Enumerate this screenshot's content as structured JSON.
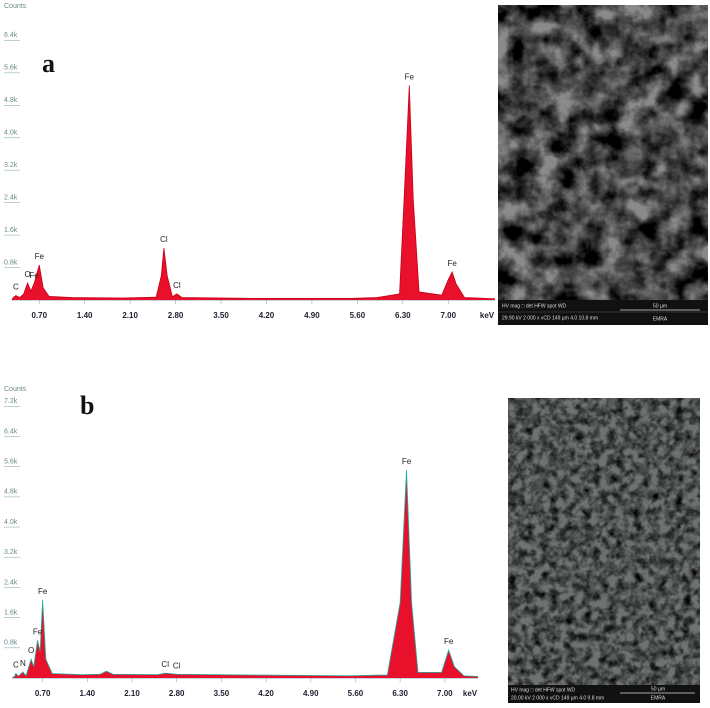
{
  "chart_data": [
    {
      "type": "area",
      "panel_label": "a",
      "y_label": "Counts",
      "x_label": "keV",
      "color": "#e8102a",
      "line_color": "#c80018",
      "x": [
        0.28,
        0.3,
        0.34,
        0.4,
        0.46,
        0.52,
        0.57,
        0.62,
        0.7,
        0.76,
        0.85,
        1.2,
        2.0,
        2.5,
        2.58,
        2.62,
        2.67,
        2.75,
        2.82,
        2.9,
        4.0,
        5.5,
        5.9,
        6.25,
        6.32,
        6.4,
        6.46,
        6.55,
        6.9,
        7.0,
        7.06,
        7.12,
        7.25,
        7.72
      ],
      "values": [
        0,
        60,
        110,
        60,
        150,
        420,
        220,
        400,
        860,
        300,
        90,
        60,
        50,
        70,
        600,
        1280,
        600,
        80,
        150,
        60,
        40,
        40,
        60,
        150,
        2500,
        5290,
        2500,
        200,
        120,
        500,
        690,
        400,
        60,
        30
      ],
      "annotations": [
        {
          "text": "C",
          "x": 0.34,
          "y": 110
        },
        {
          "text": "O",
          "x": 0.52,
          "y": 420
        },
        {
          "text": "Fe",
          "x": 0.62,
          "y": 400
        },
        {
          "text": "Fe",
          "x": 0.7,
          "y": 860
        },
        {
          "text": "Cl",
          "x": 2.62,
          "y": 1280
        },
        {
          "text": "Cl",
          "x": 2.82,
          "y": 150
        },
        {
          "text": "Fe",
          "x": 6.4,
          "y": 5290
        },
        {
          "text": "Fe",
          "x": 7.06,
          "y": 690
        }
      ],
      "xlim": [
        0.28,
        7.72
      ],
      "ylim": [
        0,
        7100
      ],
      "xticks": [
        {
          "value": 0.7,
          "label": "0.70"
        },
        {
          "value": 1.4,
          "label": "1.40"
        },
        {
          "value": 2.1,
          "label": "2.10"
        },
        {
          "value": 2.8,
          "label": "2.80"
        },
        {
          "value": 3.5,
          "label": "3.50"
        },
        {
          "value": 4.2,
          "label": "4.20"
        },
        {
          "value": 4.9,
          "label": "4.90"
        },
        {
          "value": 5.6,
          "label": "5.60"
        },
        {
          "value": 6.3,
          "label": "6.30"
        },
        {
          "value": 7.0,
          "label": "7.00"
        }
      ],
      "yticks": [
        {
          "value": 800,
          "label": "0.8k"
        },
        {
          "value": 1600,
          "label": "1.6k"
        },
        {
          "value": 2400,
          "label": "2.4k"
        },
        {
          "value": 3200,
          "label": "3.2k"
        },
        {
          "value": 4000,
          "label": "4.0k"
        },
        {
          "value": 4800,
          "label": "4.8k"
        },
        {
          "value": 5600,
          "label": "5.6k"
        },
        {
          "value": 6400,
          "label": "6.4k"
        }
      ]
    },
    {
      "type": "area",
      "panel_label": "b",
      "y_label": "Counts",
      "x_label": "keV",
      "color": "#e8102a",
      "line_color": "#20b0a0",
      "x": [
        0.22,
        0.26,
        0.28,
        0.32,
        0.39,
        0.44,
        0.52,
        0.56,
        0.62,
        0.66,
        0.7,
        0.75,
        0.85,
        1.3,
        1.6,
        1.7,
        1.8,
        2.5,
        2.62,
        2.8,
        4.0,
        5.5,
        6.1,
        6.3,
        6.4,
        6.48,
        6.58,
        6.95,
        7.06,
        7.15,
        7.3,
        7.52
      ],
      "values": [
        0,
        40,
        120,
        50,
        160,
        60,
        500,
        300,
        1000,
        700,
        2070,
        500,
        120,
        90,
        100,
        180,
        100,
        90,
        130,
        100,
        80,
        60,
        80,
        2000,
        5510,
        2000,
        150,
        150,
        740,
        300,
        60,
        40
      ],
      "annotations": [
        {
          "text": "C",
          "x": 0.28,
          "y": 120
        },
        {
          "text": "N",
          "x": 0.39,
          "y": 160
        },
        {
          "text": "O",
          "x": 0.52,
          "y": 500
        },
        {
          "text": "Fe",
          "x": 0.62,
          "y": 1000
        },
        {
          "text": "Fe",
          "x": 0.7,
          "y": 2070
        },
        {
          "text": "Cl",
          "x": 2.62,
          "y": 130
        },
        {
          "text": "Cl",
          "x": 2.8,
          "y": 100
        },
        {
          "text": "Fe",
          "x": 6.4,
          "y": 5510
        },
        {
          "text": "Fe",
          "x": 7.06,
          "y": 740
        }
      ],
      "xlim": [
        0.22,
        7.52
      ],
      "ylim": [
        0,
        7500
      ],
      "xticks": [
        {
          "value": 0.7,
          "label": "0.70"
        },
        {
          "value": 1.4,
          "label": "1.40"
        },
        {
          "value": 2.1,
          "label": "2.10"
        },
        {
          "value": 2.8,
          "label": "2.80"
        },
        {
          "value": 3.5,
          "label": "3.50"
        },
        {
          "value": 4.2,
          "label": "4.20"
        },
        {
          "value": 4.9,
          "label": "4.90"
        },
        {
          "value": 5.6,
          "label": "5.60"
        },
        {
          "value": 6.3,
          "label": "6.30"
        },
        {
          "value": 7.0,
          "label": "7.00"
        }
      ],
      "yticks": [
        {
          "value": 800,
          "label": "0.8k"
        },
        {
          "value": 1600,
          "label": "1.6k"
        },
        {
          "value": 2400,
          "label": "2.4k"
        },
        {
          "value": 3200,
          "label": "3.2k"
        },
        {
          "value": 4000,
          "label": "4.0k"
        },
        {
          "value": 4800,
          "label": "4.8k"
        },
        {
          "value": 5600,
          "label": "5.6k"
        },
        {
          "value": 6400,
          "label": "6.4k"
        },
        {
          "value": 7200,
          "label": "7.2k"
        }
      ]
    }
  ],
  "images": [
    {
      "info_header": "HV    mag □   det   HFW   spot   WD",
      "info_values": "29.90 kV  2 000 x  vCD  149 µm  4.0  10.8 mm",
      "scale_bar": "50 µm",
      "lab": "EMRA"
    },
    {
      "info_header": "HV    mag □   det   HFW   spot   WD",
      "info_values": "20.00 kV  2 000 x  vCD  149 µm  4.0  9.8 mm",
      "scale_bar": "50 µm",
      "lab": "EMRA"
    }
  ]
}
